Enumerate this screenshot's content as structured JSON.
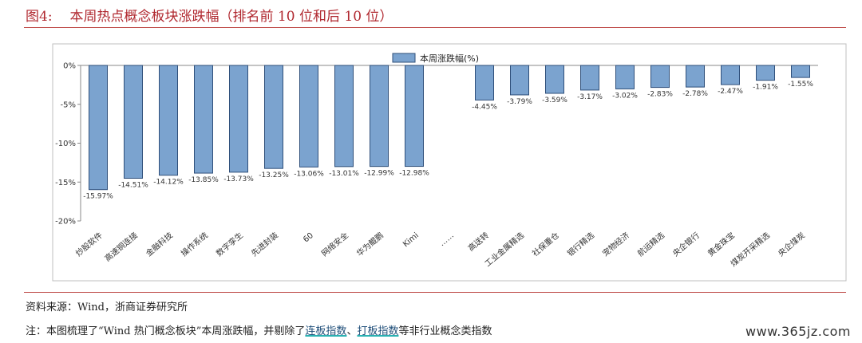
{
  "figure": {
    "number": "图4:",
    "title": "本周热点概念板块涨跌幅（排名前 10 位和后 10 位）"
  },
  "source_text": "资料来源：Wind，浙商证券研究所",
  "note": {
    "prefix": "注：本图梳理了“Wind 热门概念板块”本周涨跌幅，并剔除了",
    "term1": "连板指数",
    "sep": "、",
    "term2": "打板指数",
    "suffix": "等非行业概念类指数"
  },
  "watermark": "www.365jz.com",
  "chart_data": {
    "type": "bar",
    "categories": [
      "炒股软件",
      "高速铜连接",
      "金融科技",
      "操作系统",
      "数字孪生",
      "先进封装",
      "60",
      "网络安全",
      "华为鲲鹏",
      "Kimi",
      "……",
      "高送转",
      "工业金属精选",
      "社保重仓",
      "银行精选",
      "宠物经济",
      "航运精选",
      "央企银行",
      "黄金珠宝",
      "煤炭开采精选",
      "央企煤炭"
    ],
    "series": [
      {
        "name": "本周涨跌幅(%)",
        "values": [
          -15.97,
          -14.51,
          -14.12,
          -13.85,
          -13.73,
          -13.25,
          -13.06,
          -13.01,
          -12.99,
          -12.98,
          null,
          -4.45,
          -3.79,
          -3.59,
          -3.17,
          -3.02,
          -2.83,
          -2.78,
          -2.47,
          -1.91,
          -1.55
        ],
        "labels": [
          "-15.97%",
          "-14.51%",
          "-14.12%",
          "-13.85%",
          "-13.73%",
          "-13.25%",
          "-13.06%",
          "-13.01%",
          "-12.99%",
          "-12.98%",
          "",
          "-4.45%",
          "-3.79%",
          "-3.59%",
          "-3.17%",
          "-3.02%",
          "-2.83%",
          "-2.78%",
          "-2.47%",
          "-1.91%",
          "-1.55%"
        ]
      }
    ],
    "ylim": [
      -20,
      0
    ],
    "yticks": [
      0,
      -5,
      -10,
      -15,
      -20
    ],
    "ytick_labels": [
      "0%",
      "-5%",
      "-10%",
      "-15%",
      "-20%"
    ],
    "legend_position": "top-center",
    "grid": false,
    "colors": {
      "bar_fill": "#7ba3cf",
      "bar_stroke": "#2f4f7a"
    }
  }
}
